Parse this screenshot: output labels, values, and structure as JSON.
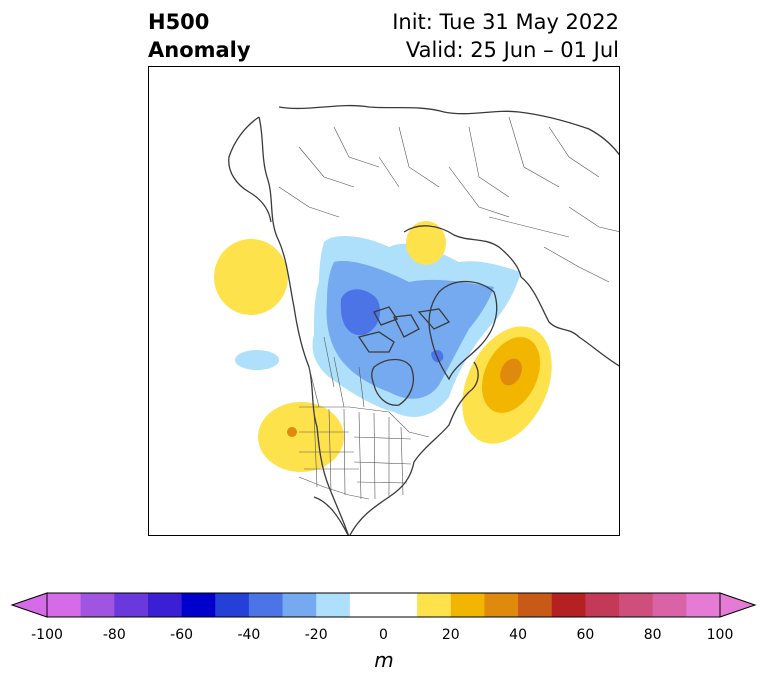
{
  "title": {
    "left_line1": "H500",
    "left_line2": "Anomaly",
    "right_line1": "Init: Tue 31 May 2022",
    "right_line2": "Valid: 25 Jun – 01 Jul"
  },
  "colorbar": {
    "unit": "m",
    "ticks": [
      "-100",
      "-80",
      "-60",
      "-40",
      "-20",
      "0",
      "20",
      "40",
      "60",
      "80",
      "100"
    ],
    "colors": [
      "#d66be8",
      "#9f55e0",
      "#6a39db",
      "#3b1fd4",
      "#0000cc",
      "#2440d9",
      "#4d74e6",
      "#76aaf0",
      "#aee0fb",
      "#ffffff",
      "#ffffff",
      "#fee24c",
      "#f2b600",
      "#df8a0c",
      "#c65a16",
      "#b32121",
      "#c33a58",
      "#cf4f7c",
      "#da63a7",
      "#e67bd6"
    ],
    "under_color": "#d66be8",
    "over_color": "#e67bd6"
  },
  "map": {
    "projection": "polar-stereographic",
    "features": [
      "coastlines",
      "country-borders",
      "state-borders"
    ],
    "anomaly_centers": [
      {
        "name": "negative-anomaly-arctic-canada",
        "sign": "negative",
        "peak_level": "-40"
      },
      {
        "name": "positive-anomaly-north-atlantic",
        "sign": "positive",
        "peak_level": "40"
      },
      {
        "name": "positive-anomaly-western-us",
        "sign": "positive",
        "peak_level": "30"
      },
      {
        "name": "positive-anomaly-north-pacific",
        "sign": "positive",
        "peak_level": "20"
      },
      {
        "name": "positive-anomaly-siberia",
        "sign": "positive",
        "peak_level": "20"
      }
    ]
  }
}
